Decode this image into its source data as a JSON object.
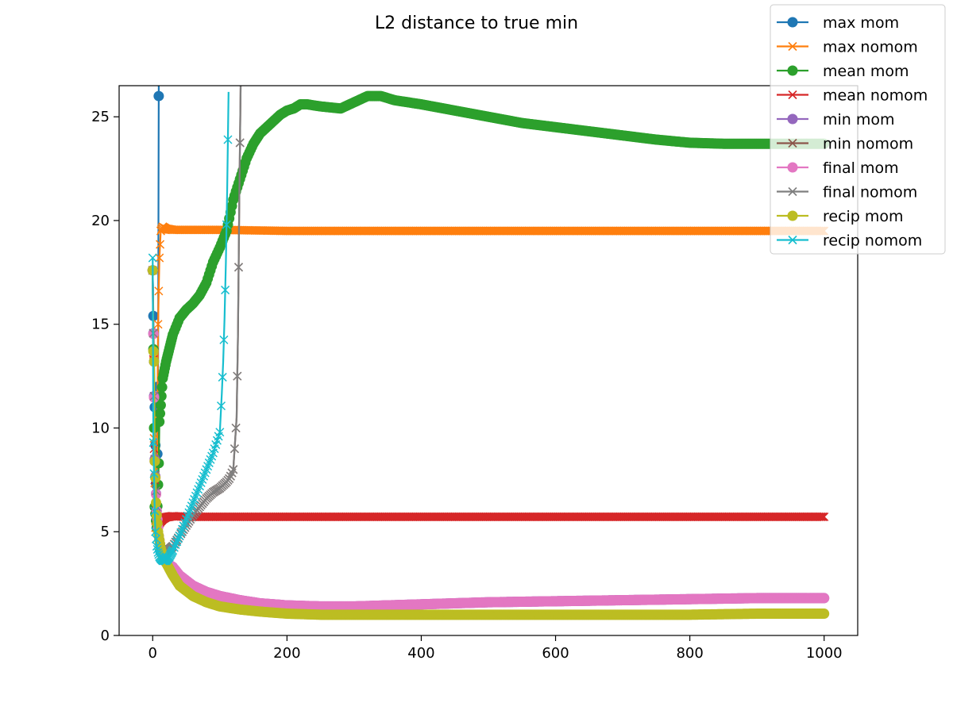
{
  "chart_data": {
    "type": "line",
    "title": "L2 distance to true min",
    "xlabel": "",
    "ylabel": "",
    "xlim": [
      -50,
      1050
    ],
    "ylim": [
      0,
      26.5
    ],
    "xticks": [
      0,
      200,
      400,
      600,
      800,
      1000
    ],
    "yticks": [
      0,
      5,
      10,
      15,
      20,
      25
    ],
    "grid": false,
    "legend_position": "top-right",
    "series": [
      {
        "name": "max mom",
        "color": "#1f77b4",
        "marker": "circle",
        "x": [
          0,
          3,
          6,
          8,
          10
        ],
        "y": [
          17.6,
          11,
          5.5,
          12,
          40
        ]
      },
      {
        "name": "max nomom",
        "color": "#ff7f0e",
        "marker": "x",
        "x": [
          0,
          2,
          4,
          6,
          8,
          10,
          12,
          15,
          20,
          30,
          50,
          100,
          200,
          300,
          400,
          500,
          600,
          700,
          800,
          900,
          1000
        ],
        "y": [
          17.6,
          9.5,
          5.2,
          6.2,
          15,
          18.2,
          19.5,
          19.7,
          19.6,
          19.55,
          19.55,
          19.55,
          19.5,
          19.5,
          19.5,
          19.5,
          19.5,
          19.5,
          19.5,
          19.5,
          19.5
        ]
      },
      {
        "name": "mean mom",
        "color": "#2ca02c",
        "marker": "circle",
        "x": [
          0,
          3,
          6,
          9,
          10,
          12,
          15,
          20,
          30,
          40,
          50,
          60,
          70,
          80,
          90,
          100,
          110,
          120,
          130,
          140,
          150,
          160,
          170,
          180,
          190,
          200,
          210,
          220,
          230,
          250,
          280,
          300,
          320,
          340,
          360,
          400,
          450,
          500,
          550,
          600,
          650,
          700,
          750,
          800,
          850,
          900,
          950,
          1000
        ],
        "y": [
          17.6,
          6.2,
          5.2,
          8.3,
          10.3,
          11.1,
          12.4,
          13.2,
          14.5,
          15.3,
          15.7,
          16.0,
          16.4,
          17.0,
          18.0,
          18.7,
          19.5,
          21.0,
          22.0,
          23.0,
          23.7,
          24.2,
          24.5,
          24.8,
          25.1,
          25.3,
          25.4,
          25.6,
          25.6,
          25.5,
          25.4,
          25.7,
          26.0,
          26.0,
          25.8,
          25.6,
          25.3,
          25.0,
          24.7,
          24.5,
          24.3,
          24.1,
          23.9,
          23.75,
          23.7,
          23.7,
          23.7,
          23.7
        ]
      },
      {
        "name": "mean nomom",
        "color": "#d62728",
        "marker": "x",
        "x": [
          0,
          2,
          4,
          6,
          8,
          10,
          12,
          15,
          20,
          30,
          50,
          100,
          200,
          300,
          400,
          500,
          600,
          700,
          800,
          900,
          1000
        ],
        "y": [
          17.6,
          9,
          6.0,
          5.2,
          5.3,
          5.4,
          5.5,
          5.6,
          5.7,
          5.75,
          5.72,
          5.72,
          5.72,
          5.72,
          5.72,
          5.72,
          5.72,
          5.72,
          5.72,
          5.72,
          5.72
        ]
      },
      {
        "name": "min mom",
        "color": "#9467bd",
        "marker": "circle",
        "x": [
          0,
          3,
          6,
          9,
          12,
          15,
          20,
          30,
          40,
          60,
          80,
          100,
          130,
          160,
          200,
          250,
          300,
          400,
          500,
          600,
          700,
          800,
          900,
          1000
        ],
        "y": [
          17.6,
          8.5,
          6.0,
          4.8,
          4.2,
          3.8,
          3.5,
          3.3,
          2.9,
          2.4,
          2.1,
          1.9,
          1.7,
          1.55,
          1.45,
          1.4,
          1.4,
          1.5,
          1.6,
          1.65,
          1.7,
          1.75,
          1.8,
          1.8
        ]
      },
      {
        "name": "min nomom",
        "color": "#8c564b",
        "marker": "x",
        "x": [
          0,
          3,
          6,
          9,
          12,
          15,
          20,
          30,
          40,
          50,
          60,
          70,
          80,
          90,
          100,
          110,
          115,
          120,
          123,
          125,
          127,
          129,
          131
        ],
        "y": [
          17.6,
          8.5,
          6.2,
          4.8,
          4.3,
          3.9,
          4.0,
          4.3,
          4.8,
          5.3,
          5.8,
          6.2,
          6.6,
          6.9,
          7.1,
          7.4,
          7.6,
          8.0,
          9.5,
          10.5,
          14.5,
          21.0,
          26.5
        ]
      },
      {
        "name": "final mom",
        "color": "#e377c2",
        "marker": "circle",
        "x": [
          0,
          3,
          6,
          9,
          12,
          15,
          20,
          30,
          40,
          60,
          80,
          100,
          130,
          160,
          200,
          250,
          300,
          400,
          500,
          600,
          700,
          800,
          900,
          1000
        ],
        "y": [
          17.6,
          8.4,
          6.0,
          4.8,
          4.2,
          3.8,
          3.5,
          3.3,
          2.9,
          2.4,
          2.1,
          1.9,
          1.7,
          1.55,
          1.45,
          1.4,
          1.4,
          1.5,
          1.6,
          1.65,
          1.7,
          1.75,
          1.8,
          1.8
        ]
      },
      {
        "name": "final nomom",
        "color": "#7f7f7f",
        "marker": "x",
        "x": [
          0,
          3,
          6,
          9,
          12,
          15,
          20,
          30,
          40,
          50,
          60,
          70,
          80,
          90,
          100,
          110,
          115,
          120,
          123,
          125,
          127,
          129,
          131
        ],
        "y": [
          17.6,
          8.5,
          6.2,
          4.8,
          4.3,
          3.9,
          4.0,
          4.3,
          4.8,
          5.3,
          5.8,
          6.2,
          6.6,
          6.9,
          7.1,
          7.4,
          7.6,
          8.0,
          9.5,
          10.5,
          14.5,
          21.0,
          26.5
        ]
      },
      {
        "name": "recip mom",
        "color": "#bcbd22",
        "marker": "circle",
        "x": [
          0,
          1,
          2,
          3,
          4,
          5,
          6,
          8,
          10,
          12,
          15,
          20,
          30,
          40,
          60,
          80,
          100,
          130,
          160,
          200,
          250,
          300,
          400,
          500,
          600,
          700,
          800,
          900,
          1000
        ],
        "y": [
          17.6,
          13.7,
          13.2,
          8.4,
          7.6,
          6.4,
          5.8,
          5.0,
          4.6,
          4.2,
          3.8,
          3.5,
          2.9,
          2.4,
          1.9,
          1.6,
          1.4,
          1.25,
          1.15,
          1.05,
          1.0,
          1.0,
          1.0,
          1.0,
          1.0,
          1.0,
          1.0,
          1.05,
          1.05
        ]
      },
      {
        "name": "recip nomom",
        "color": "#17becf",
        "marker": "x",
        "x": [
          0,
          1,
          2,
          3,
          4,
          6,
          8,
          10,
          12,
          15,
          20,
          25,
          30,
          40,
          50,
          60,
          70,
          80,
          90,
          95,
          100,
          103,
          105,
          107,
          109,
          111,
          113
        ],
        "y": [
          18.2,
          9.3,
          7.8,
          6.0,
          5.0,
          4.3,
          4.0,
          3.8,
          3.7,
          3.6,
          3.6,
          3.8,
          4.1,
          4.8,
          5.6,
          6.4,
          7.2,
          8.0,
          8.8,
          9.3,
          9.8,
          11.7,
          13.2,
          15.3,
          18.0,
          21.6,
          26.2
        ]
      }
    ]
  }
}
